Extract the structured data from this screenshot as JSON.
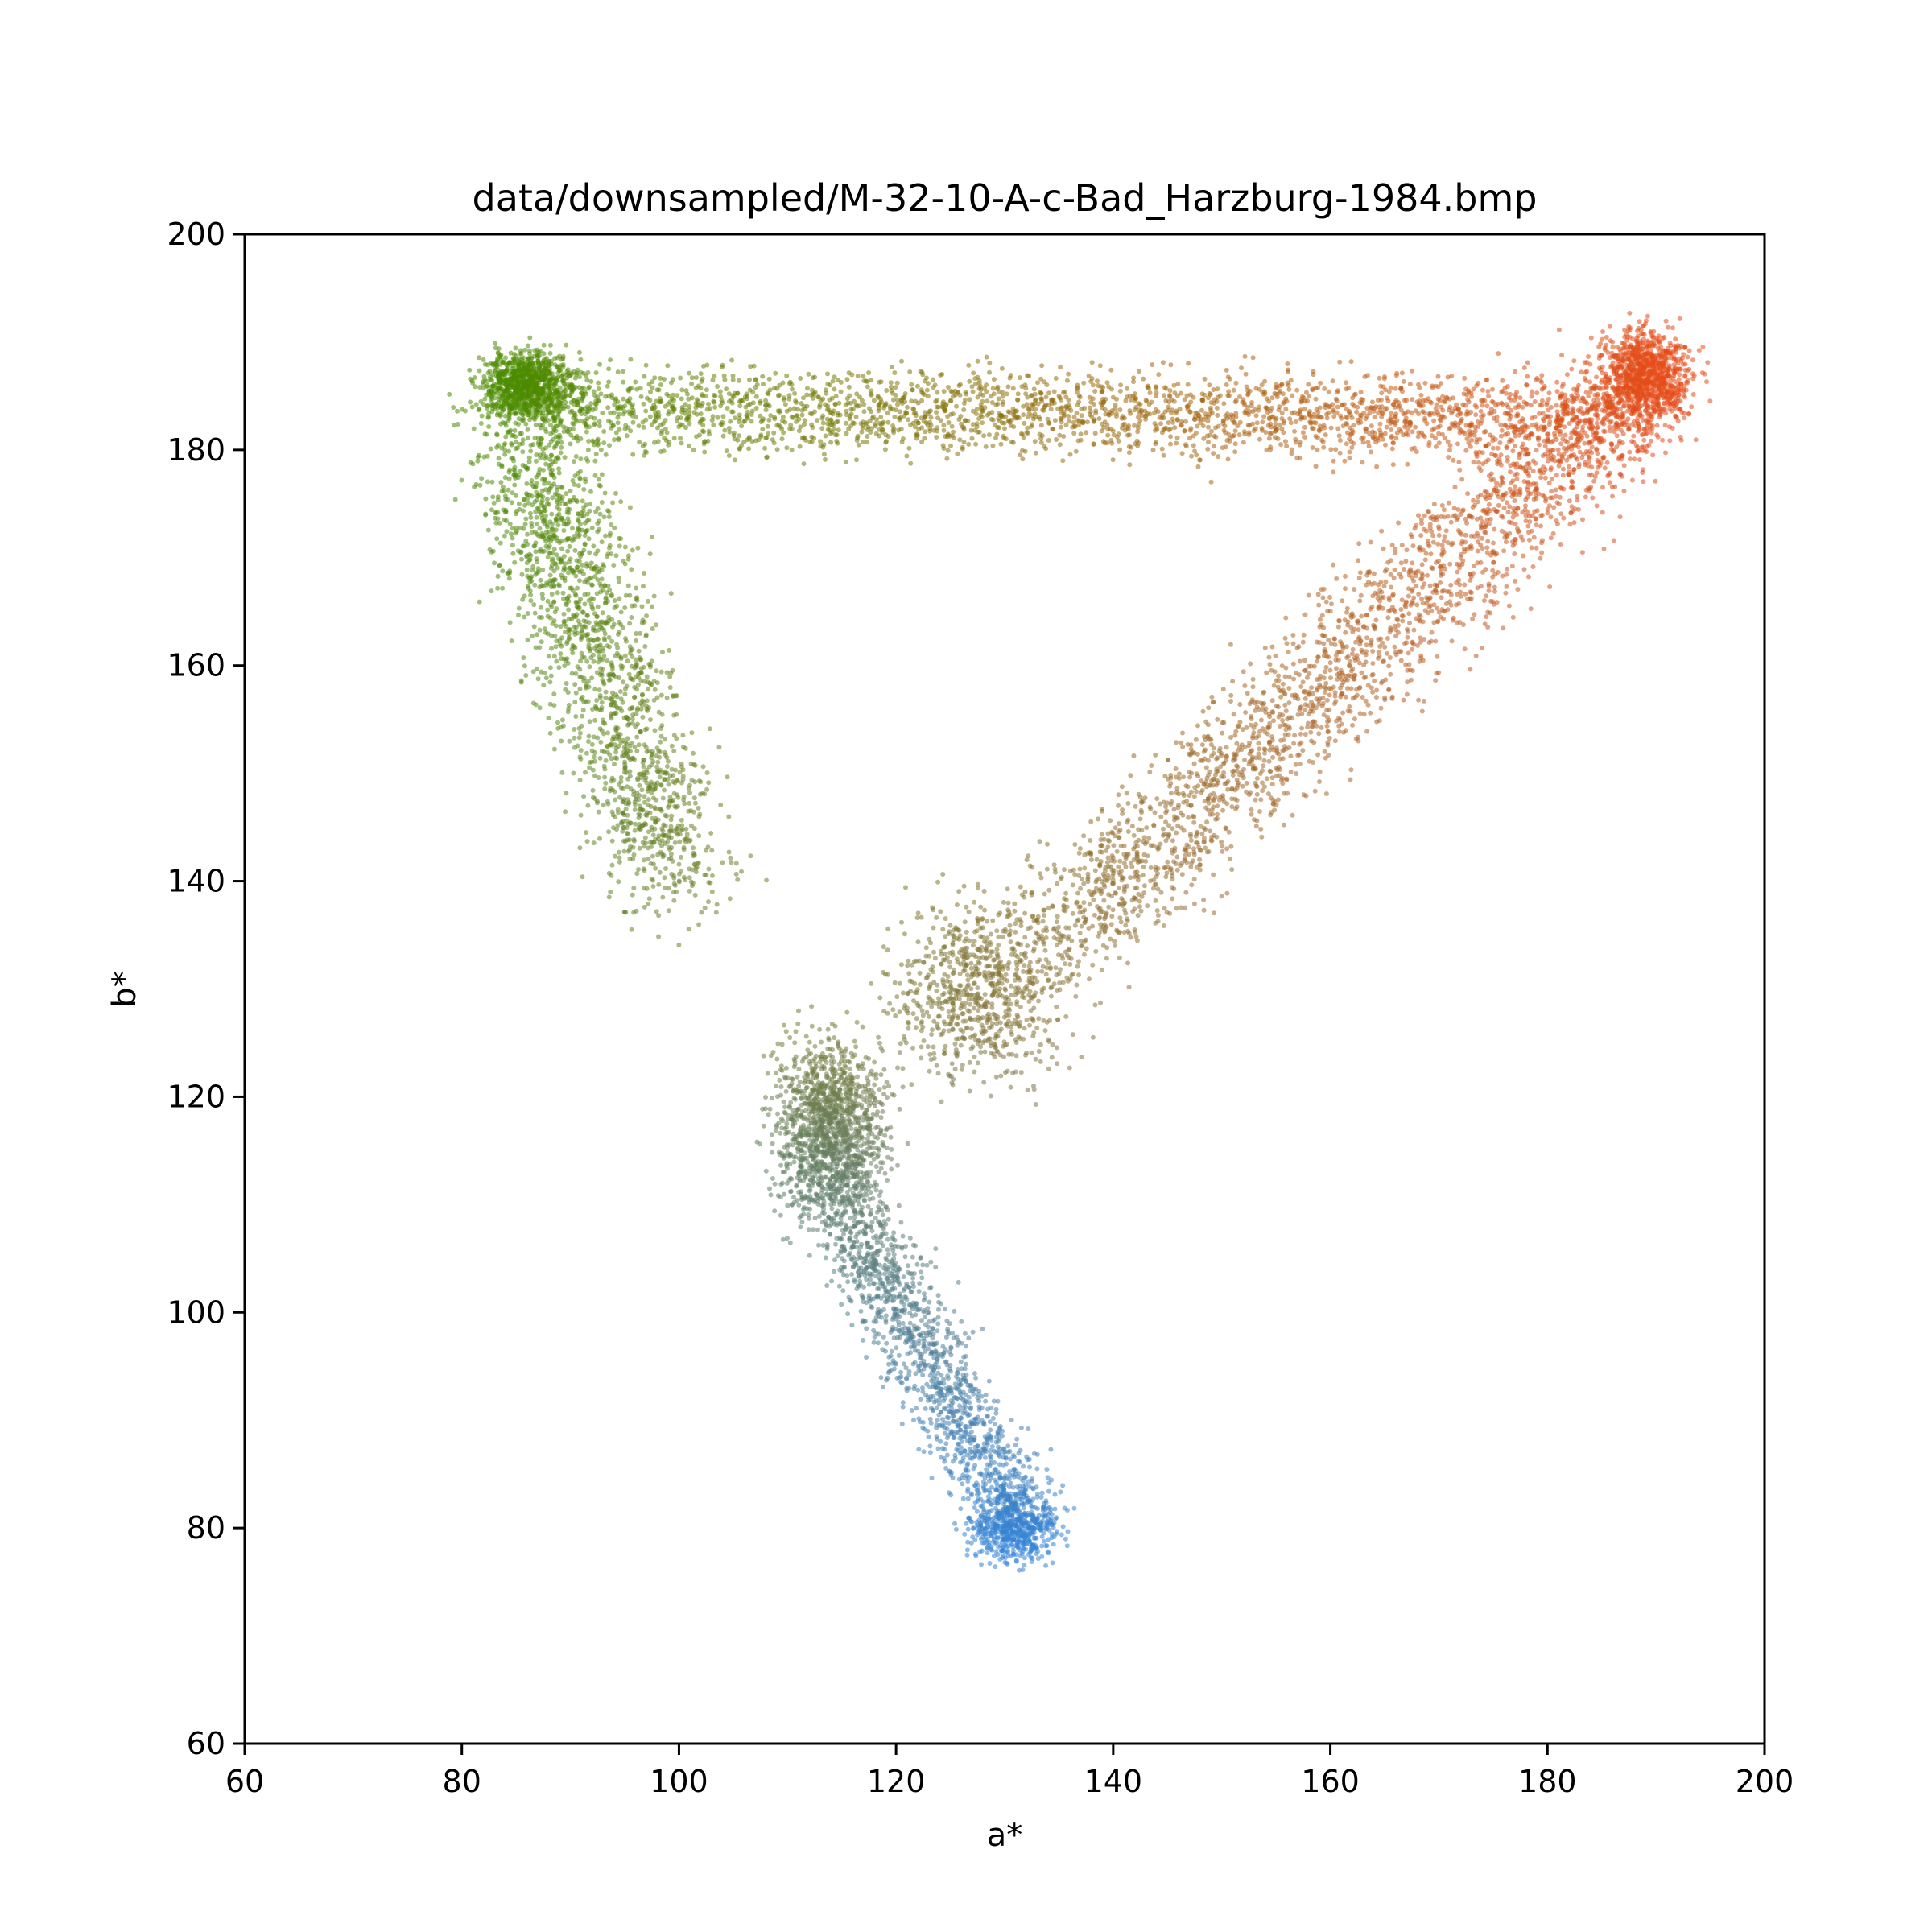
{
  "chart_data": {
    "type": "scatter",
    "title": "data/downsampled/M-32-10-A-c-Bad_Harzburg-1984.bmp",
    "xlabel": "a*",
    "ylabel": "b*",
    "xlim": [
      60,
      200
    ],
    "ylim": [
      60,
      200
    ],
    "xticks": [
      "60",
      "80",
      "100",
      "120",
      "140",
      "160",
      "180",
      "200"
    ],
    "yticks": [
      "60",
      "80",
      "100",
      "120",
      "140",
      "160",
      "180",
      "200"
    ],
    "grid": false,
    "point_color": "each point colored by its own a*/b* chroma",
    "clusters": [
      {
        "name": "green corner",
        "center": [
          86,
          186
        ],
        "spread": [
          2,
          1.5
        ],
        "count": 900,
        "color": "#4c8c00"
      },
      {
        "name": "red corner",
        "center": [
          189,
          187
        ],
        "spread": [
          2,
          2
        ],
        "count": 900,
        "color": "#e64c1a"
      },
      {
        "name": "top edge",
        "from": [
          86,
          184
        ],
        "to": [
          189,
          183
        ],
        "width": 2,
        "count": 2600
      },
      {
        "name": "right edge",
        "from": [
          189,
          186
        ],
        "to": [
          135,
          135
        ],
        "width": 3,
        "count": 2400
      },
      {
        "name": "left edge",
        "from": [
          85,
          183
        ],
        "to": [
          100,
          140
        ],
        "width": 3,
        "count": 1800
      },
      {
        "name": "gray center",
        "center": [
          128,
          130
        ],
        "spread": [
          4,
          4
        ],
        "count": 800,
        "color": "#7a7f80"
      },
      {
        "name": "teal blob",
        "center": [
          114,
          117
        ],
        "spread": [
          2.5,
          4
        ],
        "count": 1400,
        "color": "#4a8a95"
      },
      {
        "name": "blue tail",
        "from": [
          115,
          110
        ],
        "to": [
          132,
          80
        ],
        "width": 2,
        "count": 1400
      },
      {
        "name": "blue tip",
        "center": [
          131,
          80
        ],
        "spread": [
          2,
          1.5
        ],
        "count": 500,
        "color": "#3485d8"
      }
    ]
  }
}
